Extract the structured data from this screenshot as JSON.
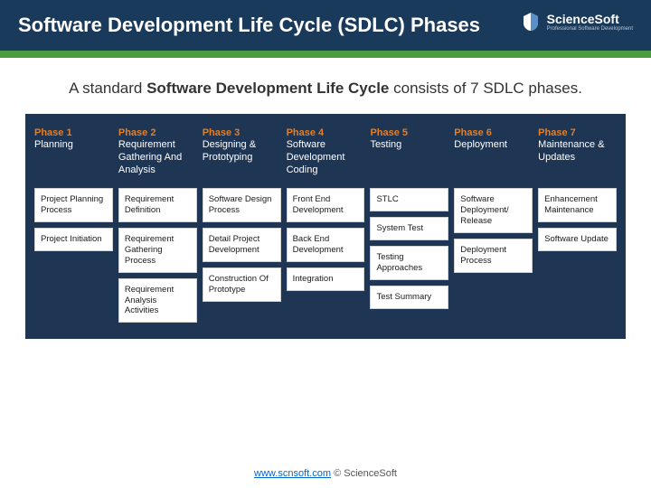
{
  "header": {
    "title": "Software Development Life Cycle (SDLC) Phases",
    "logo_text": "ScienceSoft",
    "logo_sub": "Professional Software Development"
  },
  "intro": {
    "prefix": "A standard ",
    "bold": "Software Development Life Cycle",
    "suffix": " consists of 7 SDLC phases."
  },
  "colors": {
    "header_bg": "#1a3a5c",
    "green_bar": "#4a9d3f",
    "diagram_bg": "#1e3553",
    "phase_num": "#e67e22",
    "phase_name": "#ffffff",
    "box_bg": "#ffffff",
    "box_text": "#1a1a1a"
  },
  "phases": [
    {
      "num": "Phase 1",
      "name": "Planning",
      "boxes": [
        "Project Planning Process",
        "Project Initiation"
      ]
    },
    {
      "num": "Phase 2",
      "name": "Requirement Gathering And Analysis",
      "boxes": [
        "Requirement Definition",
        "Requirement Gathering Process",
        "Requirement Analysis Activities"
      ]
    },
    {
      "num": "Phase 3",
      "name": "Designing & Prototyping",
      "boxes": [
        "Software Design Process",
        "Detail Project Development",
        "Construction Of Prototype"
      ]
    },
    {
      "num": "Phase 4",
      "name": "Software Development Coding",
      "boxes": [
        "Front End Development",
        "Back End Development",
        "Integration"
      ]
    },
    {
      "num": "Phase 5",
      "name": "Testing",
      "boxes": [
        "STLC",
        "System Test",
        "Testing Approaches",
        "Test Summary"
      ]
    },
    {
      "num": "Phase 6",
      "name": "Deployment",
      "boxes": [
        "Software Deployment/ Release",
        "Deployment Process"
      ]
    },
    {
      "num": "Phase 7",
      "name": "Maintenance & Updates",
      "boxes": [
        "Enhancement Maintenance",
        "Software Update"
      ]
    }
  ],
  "footer": {
    "link_text": "www.scnsoft.com",
    "copyright": " © ScienceSoft"
  }
}
